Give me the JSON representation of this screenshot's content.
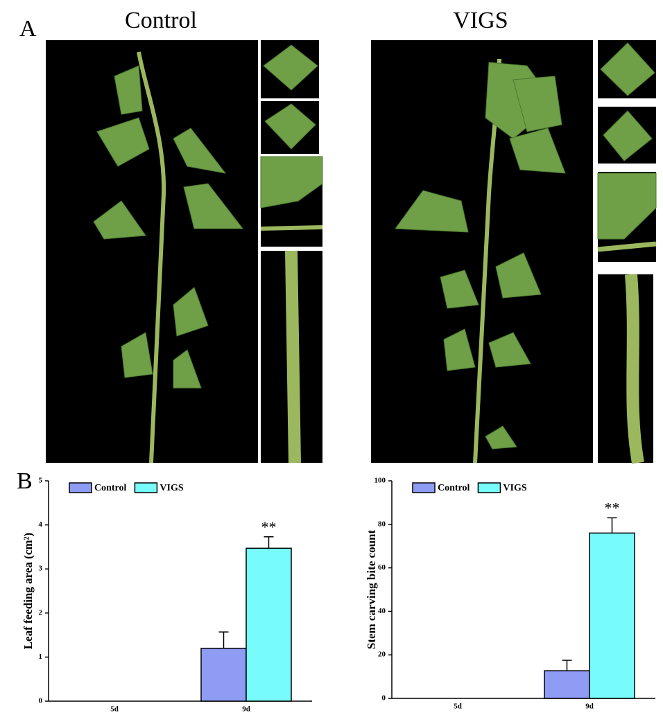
{
  "labels": {
    "panel_a": "A",
    "panel_b": "B",
    "photo_titles": [
      "Control",
      "VIGS"
    ]
  },
  "chart_data": [
    {
      "type": "bar",
      "y_label": "Leaf feeding area (cm²)",
      "categories": [
        "5d",
        "9d"
      ],
      "series": [
        {
          "name": "Control",
          "color": "#8f9cf4",
          "values": [
            0,
            1.2
          ],
          "errors": [
            null,
            0.37
          ]
        },
        {
          "name": "VIGS",
          "color": "#77fbfb",
          "values": [
            0,
            3.47
          ],
          "errors": [
            null,
            0.26
          ]
        }
      ],
      "annotations": [
        {
          "text": "**",
          "series": 1,
          "category": 1
        }
      ],
      "ylim": [
        0,
        5
      ],
      "yticks": [
        0,
        1,
        2,
        3,
        4,
        5
      ],
      "legend": "top-left"
    },
    {
      "type": "bar",
      "y_label": "Stem carving bite count",
      "categories": [
        "5d",
        "9d"
      ],
      "series": [
        {
          "name": "Control",
          "color": "#8f9cf4",
          "values": [
            0,
            12.7
          ],
          "errors": [
            null,
            4.8
          ]
        },
        {
          "name": "VIGS",
          "color": "#77fbfb",
          "values": [
            0,
            76
          ],
          "errors": [
            null,
            7
          ]
        }
      ],
      "annotations": [
        {
          "text": "**",
          "series": 1,
          "category": 1
        }
      ],
      "ylim": [
        0,
        100
      ],
      "yticks": [
        0,
        20,
        40,
        60,
        80,
        100
      ],
      "legend": "top-left"
    }
  ]
}
